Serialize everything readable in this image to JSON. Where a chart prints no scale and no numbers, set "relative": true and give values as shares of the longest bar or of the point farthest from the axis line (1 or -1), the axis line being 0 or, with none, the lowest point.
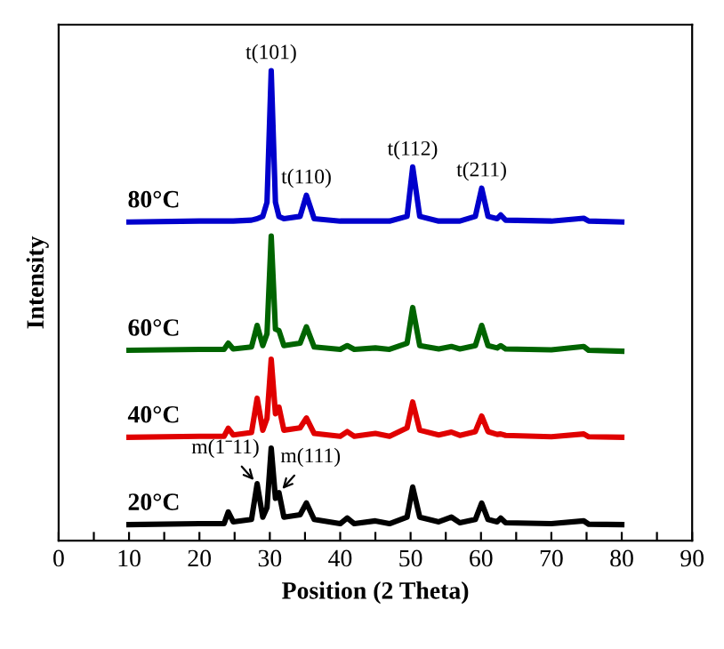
{
  "chart_data": {
    "type": "line",
    "xlabel": "Position (2 Theta)",
    "ylabel": "Intensity",
    "relative": true,
    "tick_labels": "x",
    "legend": false,
    "grid": false,
    "xlim": [
      0,
      90
    ],
    "xticks": [
      0,
      {
        "value": 5,
        "label": null
      },
      10,
      {
        "value": 15,
        "label": null
      },
      20,
      {
        "value": 25,
        "label": null
      },
      30,
      {
        "value": 35,
        "label": null
      },
      40,
      {
        "value": 45,
        "label": null
      },
      50,
      {
        "value": 55,
        "label": null
      },
      60,
      {
        "value": 65,
        "label": null
      },
      70,
      {
        "value": 75,
        "label": null
      },
      80,
      {
        "value": 85,
        "label": null
      },
      90
    ],
    "x": [
      10,
      20,
      23.5,
      24.1,
      24.8,
      27.4,
      28.2,
      29.0,
      29.6,
      30.2,
      30.8,
      31.3,
      32,
      34.3,
      35.2,
      36.3,
      40,
      41,
      42,
      45,
      47,
      49.5,
      50.3,
      51.3,
      54,
      55.8,
      57,
      59.2,
      60.1,
      61,
      62.3,
      62.8,
      63.5,
      70,
      74.6,
      75.3,
      80
    ],
    "series": [
      {
        "name": "80°C",
        "color": "#0000cc",
        "values": [
          0.678,
          0.68,
          0.68,
          0.68,
          0.68,
          0.682,
          0.685,
          0.69,
          0.72,
          1.0,
          0.72,
          0.69,
          0.685,
          0.69,
          0.735,
          0.685,
          0.68,
          0.68,
          0.68,
          0.68,
          0.68,
          0.69,
          0.795,
          0.69,
          0.68,
          0.68,
          0.68,
          0.69,
          0.75,
          0.69,
          0.685,
          0.693,
          0.682,
          0.68,
          0.686,
          0.68,
          0.678
        ]
      },
      {
        "name": "60°C",
        "color": "#006400",
        "values": [
          0.405,
          0.407,
          0.407,
          0.42,
          0.408,
          0.412,
          0.458,
          0.415,
          0.44,
          0.648,
          0.45,
          0.447,
          0.415,
          0.42,
          0.455,
          0.412,
          0.407,
          0.415,
          0.407,
          0.41,
          0.407,
          0.42,
          0.496,
          0.415,
          0.408,
          0.413,
          0.408,
          0.415,
          0.458,
          0.415,
          0.41,
          0.415,
          0.408,
          0.406,
          0.413,
          0.405,
          0.403
        ]
      },
      {
        "name": "40°C",
        "color": "#e00000",
        "values": [
          0.22,
          0.222,
          0.222,
          0.239,
          0.225,
          0.23,
          0.303,
          0.235,
          0.26,
          0.386,
          0.27,
          0.284,
          0.235,
          0.24,
          0.261,
          0.228,
          0.222,
          0.232,
          0.222,
          0.228,
          0.222,
          0.24,
          0.295,
          0.235,
          0.225,
          0.231,
          0.224,
          0.232,
          0.265,
          0.232,
          0.226,
          0.227,
          0.224,
          0.221,
          0.227,
          0.221,
          0.22
        ]
      },
      {
        "name": "20°C",
        "color": "#000000",
        "values": [
          0.034,
          0.036,
          0.036,
          0.061,
          0.04,
          0.045,
          0.121,
          0.05,
          0.07,
          0.197,
          0.09,
          0.102,
          0.05,
          0.055,
          0.08,
          0.045,
          0.036,
          0.048,
          0.036,
          0.042,
          0.036,
          0.05,
          0.114,
          0.05,
          0.04,
          0.05,
          0.038,
          0.045,
          0.08,
          0.045,
          0.04,
          0.048,
          0.038,
          0.036,
          0.042,
          0.035,
          0.034
        ]
      }
    ],
    "annotations": [
      {
        "text": "t(101)",
        "x": 30.2,
        "y": 1.0
      },
      {
        "text": "t(110)",
        "x": 35.2,
        "y": 0.735
      },
      {
        "text": "t(112)",
        "x": 50.3,
        "y": 0.795
      },
      {
        "text": "t(211)",
        "x": 60.1,
        "y": 0.75
      },
      {
        "text": "m(1ˉ11)",
        "x": 28.2,
        "y": 0.121
      },
      {
        "text": "m(111)",
        "x": 31.3,
        "y": 0.102
      }
    ]
  }
}
